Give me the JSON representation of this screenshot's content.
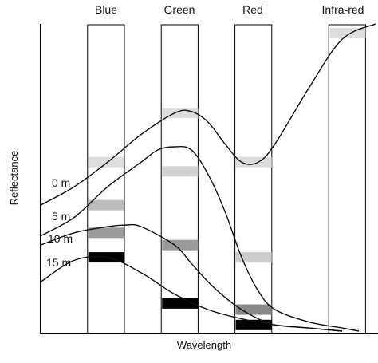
{
  "chart_data": {
    "type": "line",
    "title": "",
    "xlabel": "Wavelength",
    "ylabel": "Reflectance",
    "x_ticks": false,
    "y_ticks": false,
    "grid": false,
    "bands": [
      {
        "name": "Blue",
        "xmin": 0.14,
        "xmax": 0.25
      },
      {
        "name": "Green",
        "xmin": 0.36,
        "xmax": 0.47
      },
      {
        "name": "Red",
        "xmin": 0.58,
        "xmax": 0.69
      },
      {
        "name": "Infra-red",
        "xmin": 0.86,
        "xmax": 0.97
      }
    ],
    "series": [
      {
        "name": "0 m",
        "x": [
          0.0,
          0.1,
          0.2,
          0.3,
          0.4,
          0.45,
          0.5,
          0.55,
          0.6,
          0.65,
          0.7,
          0.8,
          0.9,
          1.0
        ],
        "y": [
          0.41,
          0.47,
          0.55,
          0.64,
          0.71,
          0.715,
          0.68,
          0.61,
          0.55,
          0.55,
          0.61,
          0.79,
          0.95,
          1.0
        ]
      },
      {
        "name": "5 m",
        "x": [
          0.0,
          0.1,
          0.2,
          0.3,
          0.35,
          0.4,
          0.45,
          0.5,
          0.55,
          0.6,
          0.65,
          0.7,
          0.8,
          0.9,
          0.95
        ],
        "y": [
          0.31,
          0.37,
          0.47,
          0.55,
          0.59,
          0.6,
          0.59,
          0.51,
          0.39,
          0.24,
          0.13,
          0.07,
          0.03,
          0.01,
          0.0
        ]
      },
      {
        "name": "10 m",
        "x": [
          0.0,
          0.1,
          0.2,
          0.25,
          0.3,
          0.4,
          0.45,
          0.5,
          0.55,
          0.6,
          0.65,
          0.7,
          0.8,
          0.9
        ],
        "y": [
          0.28,
          0.32,
          0.34,
          0.345,
          0.34,
          0.28,
          0.22,
          0.16,
          0.11,
          0.07,
          0.04,
          0.02,
          0.01,
          0.0
        ]
      },
      {
        "name": "15 m",
        "x": [
          0.0,
          0.1,
          0.2,
          0.3,
          0.4,
          0.5,
          0.6,
          0.7,
          0.8,
          0.9
        ],
        "y": [
          0.16,
          0.23,
          0.24,
          0.19,
          0.12,
          0.07,
          0.04,
          0.02,
          0.01,
          0.0
        ]
      }
    ],
    "band_reflectance": [
      {
        "series": "0 m",
        "band": "Blue",
        "y": 0.55,
        "shade": "#dddddd"
      },
      {
        "series": "0 m",
        "band": "Green",
        "y": 0.71,
        "shade": "#dddddd"
      },
      {
        "series": "0 m",
        "band": "Red",
        "y": 0.55,
        "shade": "#dddddd"
      },
      {
        "series": "0 m",
        "band": "Infra-red",
        "y": 0.97,
        "shade": "#dddddd"
      },
      {
        "series": "5 m",
        "band": "Blue",
        "y": 0.41,
        "shade": "#bbbbbb"
      },
      {
        "series": "5 m",
        "band": "Green",
        "y": 0.52,
        "shade": "#d2d2d2"
      },
      {
        "series": "5 m",
        "band": "Red",
        "y": 0.24,
        "shade": "#cccccc"
      },
      {
        "series": "10 m",
        "band": "Blue",
        "y": 0.32,
        "shade": "#999999"
      },
      {
        "series": "10 m",
        "band": "Green",
        "y": 0.28,
        "shade": "#999999"
      },
      {
        "series": "10 m",
        "band": "Red",
        "y": 0.07,
        "shade": "#888888"
      },
      {
        "series": "15 m",
        "band": "Blue",
        "y": 0.24,
        "shade": "#000000"
      },
      {
        "series": "15 m",
        "band": "Green",
        "y": 0.09,
        "shade": "#000000"
      },
      {
        "series": "15 m",
        "band": "Red",
        "y": 0.02,
        "shade": "#000000"
      }
    ],
    "ylim": [
      0,
      1.0
    ],
    "xlim": [
      0,
      1.0
    ]
  }
}
